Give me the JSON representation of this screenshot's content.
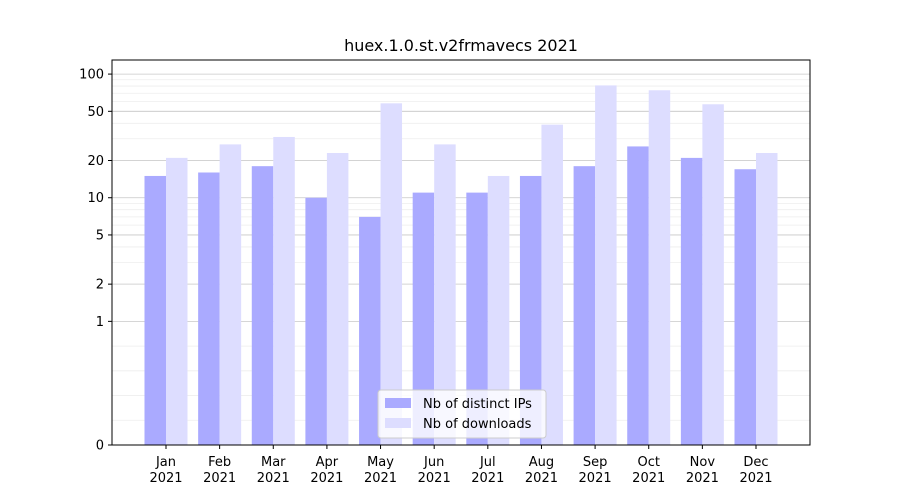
{
  "chart_data": {
    "type": "bar",
    "title": "huex.1.0.st.v2frmavecs 2021",
    "xlabel": "",
    "ylabel": "",
    "y_scale": "symlog",
    "y_ticks": [
      0,
      1,
      2,
      5,
      10,
      20,
      50,
      100
    ],
    "y_tick_labels": [
      "0",
      "1",
      "2",
      "5",
      "10",
      "20",
      "50",
      "100"
    ],
    "ylim": [
      0,
      130
    ],
    "grid": true,
    "legend_position": "bottom-center",
    "categories": [
      [
        "Jan",
        "2021"
      ],
      [
        "Feb",
        "2021"
      ],
      [
        "Mar",
        "2021"
      ],
      [
        "Apr",
        "2021"
      ],
      [
        "May",
        "2021"
      ],
      [
        "Jun",
        "2021"
      ],
      [
        "Jul",
        "2021"
      ],
      [
        "Aug",
        "2021"
      ],
      [
        "Sep",
        "2021"
      ],
      [
        "Oct",
        "2021"
      ],
      [
        "Nov",
        "2021"
      ],
      [
        "Dec",
        "2021"
      ]
    ],
    "series": [
      {
        "name": "Nb of distinct IPs",
        "color": "#aaaaff",
        "values": [
          15,
          16,
          18,
          10,
          7,
          11,
          11,
          15,
          18,
          26,
          21,
          17
        ]
      },
      {
        "name": "Nb of downloads",
        "color": "#ddddff",
        "values": [
          21,
          27,
          31,
          23,
          58,
          27,
          15,
          39,
          81,
          74,
          57,
          23
        ]
      }
    ]
  }
}
